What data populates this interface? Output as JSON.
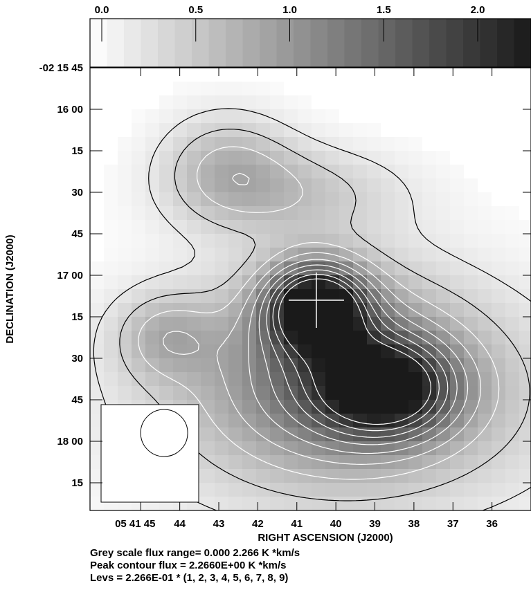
{
  "chart_data": {
    "type": "heatmap",
    "title": "",
    "xlabel": "RIGHT ASCENSION (J2000)",
    "ylabel": "DECLINATION (J2000)",
    "colorbar": {
      "range": [
        0.0,
        2.266
      ],
      "ticks": [
        0.0,
        0.5,
        1.0,
        1.5,
        2.0
      ],
      "tick_labels": [
        "0.0",
        "0.5",
        "1.0",
        "1.5",
        "2.0"
      ],
      "low_color": "#ffffff",
      "high_color": "#1a1a1a"
    },
    "x_ticks_seconds": [
      45,
      44,
      43,
      42,
      41,
      40,
      39,
      38,
      37,
      36
    ],
    "x_tick_labels": [
      "05 41 45",
      "44",
      "43",
      "42",
      "41",
      "40",
      "39",
      "38",
      "37",
      "36"
    ],
    "x_range_seconds": [
      46.3,
      35.0
    ],
    "y_ticks_offset_arcsec": [
      0,
      15,
      30,
      45,
      60,
      75,
      90,
      105,
      120,
      135,
      150
    ],
    "y_tick_labels": [
      "-02 15 45",
      "16 00",
      "15",
      "30",
      "45",
      "17 00",
      "15",
      "30",
      "45",
      "18 00",
      "15"
    ],
    "y_range_offset_arcsec": [
      0,
      160
    ],
    "peaks": [
      {
        "ra_s": 40.5,
        "dec_offset": 86,
        "amplitude": 2.1,
        "sigma_ra": 0.9,
        "sigma_dec": 11
      },
      {
        "ra_s": 38.7,
        "dec_offset": 116,
        "amplitude": 1.5,
        "sigma_ra": 1.2,
        "sigma_dec": 12
      },
      {
        "ra_s": 40.0,
        "dec_offset": 108,
        "amplitude": 0.9,
        "sigma_ra": 2.2,
        "sigma_dec": 24
      },
      {
        "ra_s": 44.4,
        "dec_offset": 97,
        "amplitude": 0.55,
        "sigma_ra": 0.9,
        "sigma_dec": 11
      },
      {
        "ra_s": 42.8,
        "dec_offset": 35,
        "amplitude": 0.6,
        "sigma_ra": 1.2,
        "sigma_dec": 14
      },
      {
        "ra_s": 41.0,
        "dec_offset": 45,
        "amplitude": 0.5,
        "sigma_ra": 2.0,
        "sigma_dec": 12
      },
      {
        "ra_s": 39.5,
        "dec_offset": 120,
        "amplitude": 0.7,
        "sigma_ra": 4.0,
        "sigma_dec": 30
      }
    ],
    "contour_levels": [
      0.2266,
      0.4532,
      0.6798,
      0.9064,
      1.133,
      1.3596,
      1.5862,
      1.8128,
      2.0394
    ],
    "cross_marker": {
      "ra_s": 40.5,
      "dec_offset": 84
    },
    "beam": {
      "ra_s": 44.4,
      "dec_offset": 132,
      "diameter_arcsec": 17
    }
  },
  "caption": {
    "line1": "Grey scale flux range= 0.000 2.266 K *km/s",
    "line2": "Peak contour flux =  2.2660E+00 K   *km/s",
    "line3": "Levs = 2.266E-01 * (1, 2, 3, 4, 5, 6, 7, 8, 9)"
  }
}
